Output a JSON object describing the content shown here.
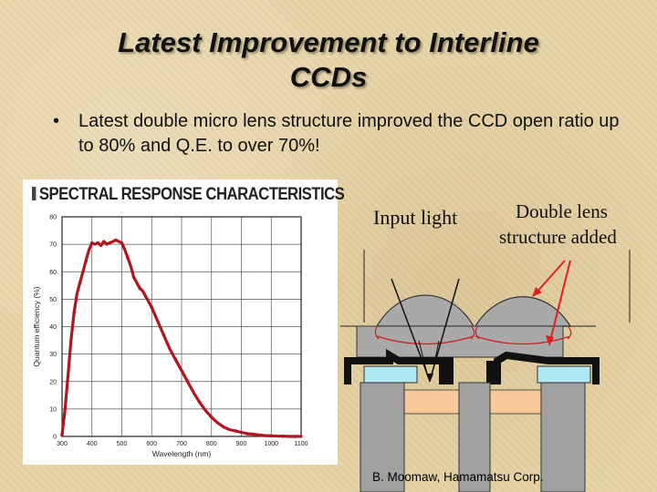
{
  "slide": {
    "title_line1": "Latest Improvement to Interline",
    "title_line2": "CCDs",
    "bullet_text": "Latest double micro lens structure improved the CCD open ratio up to 80% and Q.E. to over 70%!",
    "credit": "B. Moomaw, Hamamatsu Corp."
  },
  "diagram": {
    "input_light_label": "Input light",
    "double_lens_line1": "Double lens",
    "double_lens_line2": "structure added"
  },
  "chart_data": {
    "type": "line",
    "title": "SPECTRAL RESPONSE CHARACTERISTICS",
    "xlabel": "Wavelength (nm)",
    "ylabel": "Quantum efficiency (%)",
    "xlim": [
      300,
      1100
    ],
    "ylim": [
      0,
      80
    ],
    "xticks": [
      "300",
      "400",
      "500",
      "600",
      "700",
      "800",
      "900",
      "1000",
      "1100"
    ],
    "yticks": [
      "0",
      "10",
      "20",
      "30",
      "40",
      "50",
      "60",
      "70",
      "80"
    ],
    "grid": true,
    "line_color": "#b0161e",
    "series": [
      {
        "x": [
          300,
          310,
          320,
          330,
          340,
          350,
          360,
          370,
          380,
          390,
          400,
          410,
          420,
          430,
          440,
          450,
          460,
          470,
          480,
          490,
          500,
          510,
          520,
          530,
          540,
          550,
          560,
          570,
          580,
          590,
          600,
          620,
          640,
          660,
          680,
          700,
          720,
          740,
          760,
          780,
          800,
          820,
          840,
          860,
          880,
          900,
          920,
          940,
          960,
          980,
          1000,
          1020,
          1040,
          1060,
          1080,
          1100
        ],
        "y": [
          0.5,
          10,
          22,
          35,
          45,
          52,
          56,
          60,
          64,
          68,
          70.5,
          70,
          70.5,
          69.5,
          71,
          70,
          70.5,
          71,
          71.5,
          71,
          70.5,
          68,
          65,
          62,
          58,
          56,
          54,
          53,
          51,
          49,
          47,
          42,
          37,
          32,
          28,
          24,
          20,
          16,
          12.5,
          9.5,
          7,
          5,
          3.5,
          2.5,
          2,
          1.5,
          1,
          0.8,
          0.5,
          0.3,
          0.2,
          0.1,
          0.1,
          0,
          0,
          0
        ]
      }
    ]
  }
}
